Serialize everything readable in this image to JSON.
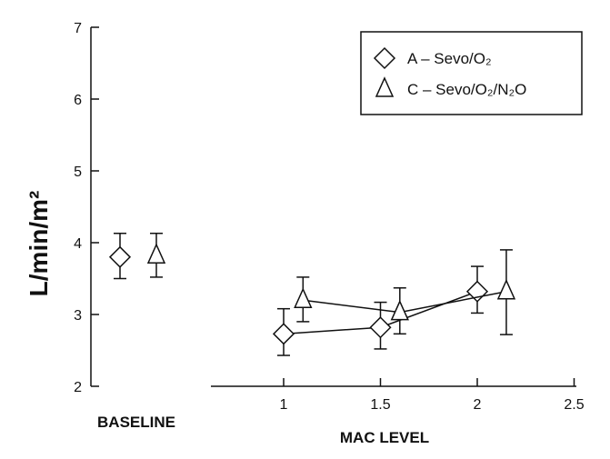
{
  "chart_data": {
    "type": "line",
    "ylabel": "L/min/m²",
    "xlabel": "MAC LEVEL",
    "baseline_label": "BASELINE",
    "ylim": [
      2,
      7
    ],
    "yticks": [
      "2",
      "3",
      "4",
      "5",
      "6",
      "7"
    ],
    "xlim": [
      0,
      2.5
    ],
    "xticks": [
      "1",
      "1.5",
      "2",
      "2.5"
    ],
    "xtick_values": [
      1,
      1.5,
      2,
      2.5
    ],
    "legend_position": "top-right",
    "grid": false,
    "series": [
      {
        "name": "A – Sevo/O₂",
        "marker": "diamond",
        "baseline": {
          "mean": 3.8,
          "err_low": 3.5,
          "err_high": 4.13
        },
        "points": [
          {
            "x": 1.0,
            "mean": 2.73,
            "err_low": 2.43,
            "err_high": 3.08
          },
          {
            "x": 1.5,
            "mean": 2.82,
            "err_low": 2.52,
            "err_high": 3.17
          },
          {
            "x": 2.0,
            "mean": 3.32,
            "err_low": 3.02,
            "err_high": 3.67
          }
        ]
      },
      {
        "name": "C – Sevo/O₂/N₂O",
        "marker": "triangle",
        "baseline": {
          "mean": 3.82,
          "err_low": 3.52,
          "err_high": 4.13
        },
        "points": [
          {
            "x": 1.1,
            "mean": 3.2,
            "err_low": 2.9,
            "err_high": 3.52
          },
          {
            "x": 1.6,
            "mean": 3.03,
            "err_low": 2.73,
            "err_high": 3.37
          },
          {
            "x": 2.15,
            "mean": 3.32,
            "err_low": 2.72,
            "err_high": 3.9
          }
        ]
      }
    ]
  }
}
